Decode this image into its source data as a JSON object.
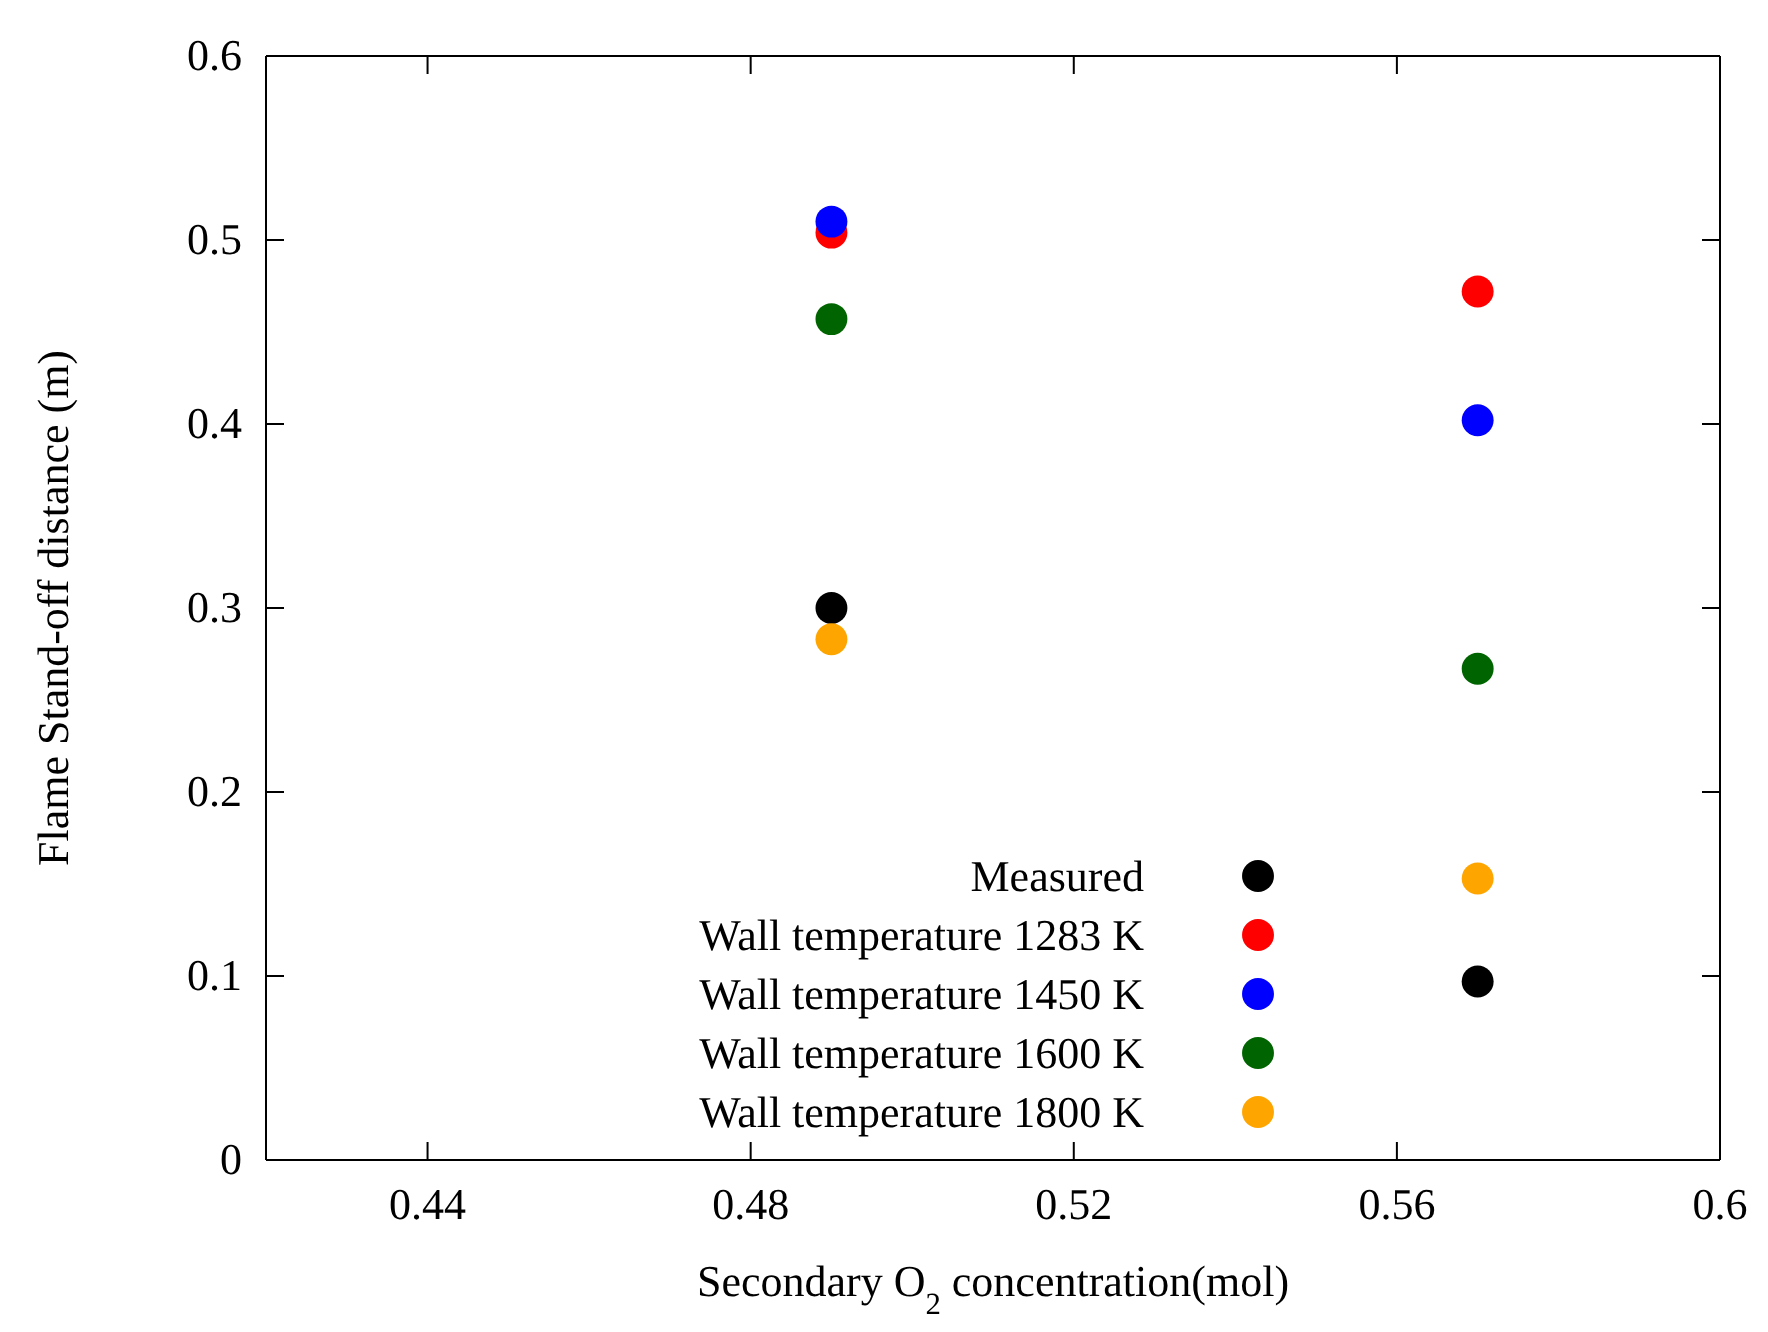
{
  "chart_data": {
    "type": "scatter",
    "xlabel": "Secondary O$_{2}$ concentration(mol)",
    "ylabel": "Flame Stand-off distance (m)",
    "xlim": [
      0.42,
      0.6
    ],
    "xticks": [
      0.44,
      0.48,
      0.52,
      0.56,
      0.6
    ],
    "ylim": [
      0,
      0.6
    ],
    "yticks": [
      0,
      0.1,
      0.2,
      0.3,
      0.4,
      0.5,
      0.6
    ],
    "x": [
      0.49,
      0.57
    ],
    "grid": false,
    "legend": "bottom",
    "marker": "circle",
    "series": [
      {
        "name": "Measured",
        "color": "#000000",
        "values": [
          0.3,
          0.097
        ]
      },
      {
        "name": "Wall temperature 1283 K",
        "color": "#ff0000",
        "values": [
          0.504,
          0.472
        ]
      },
      {
        "name": "Wall temperature 1450 K",
        "color": "#0000ff",
        "values": [
          0.51,
          0.402
        ]
      },
      {
        "name": "Wall temperature 1600 K",
        "color": "#006400",
        "values": [
          0.457,
          0.267
        ]
      },
      {
        "name": "Wall temperature 1800 K",
        "color": "#ffa500",
        "values": [
          0.283,
          0.153
        ]
      }
    ]
  }
}
